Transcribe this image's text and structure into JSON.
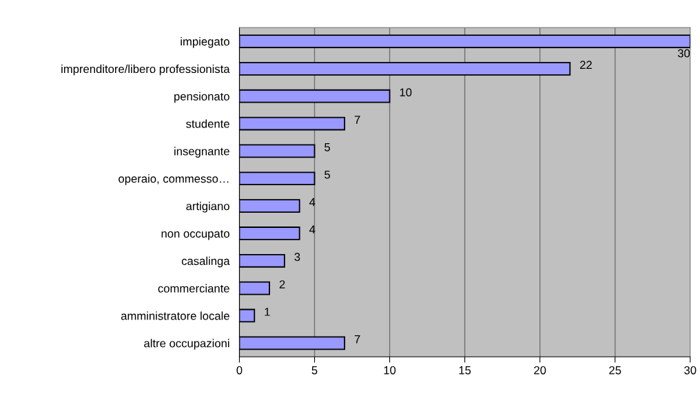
{
  "chart_data": {
    "type": "bar",
    "orientation": "horizontal",
    "categories": [
      "impiegato",
      "imprenditore/libero professionista",
      "pensionato",
      "studente",
      "insegnante",
      "operaio, commesso…",
      "artigiano",
      "non occupato",
      "casalinga",
      "commerciante",
      "amministratore locale",
      "altre occupazioni"
    ],
    "values": [
      30,
      22,
      10,
      7,
      5,
      5,
      4,
      4,
      3,
      2,
      1,
      7
    ],
    "color": "#9999ff",
    "xlim": [
      0,
      30
    ],
    "xticks": [
      0,
      5,
      10,
      15,
      20,
      25,
      30
    ],
    "grid": "x",
    "data_labels": true
  }
}
